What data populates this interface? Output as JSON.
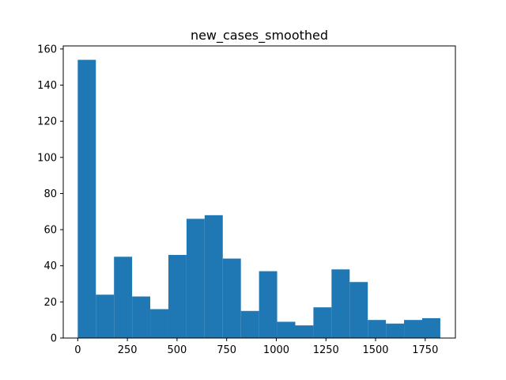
{
  "chart_data": {
    "type": "bar",
    "title": "new_cases_smoothed",
    "xlabel": "",
    "ylabel": "",
    "xlim": [
      -73,
      1902
    ],
    "ylim": [
      0,
      161.7
    ],
    "bar_color": "#1f77b4",
    "grid": false,
    "bins": [
      {
        "x0": 0.0,
        "x1": 91.3,
        "value": 154
      },
      {
        "x0": 91.3,
        "x1": 182.6,
        "value": 24
      },
      {
        "x0": 182.6,
        "x1": 273.9,
        "value": 45
      },
      {
        "x0": 273.9,
        "x1": 365.2,
        "value": 23
      },
      {
        "x0": 365.2,
        "x1": 456.5,
        "value": 16
      },
      {
        "x0": 456.5,
        "x1": 547.8,
        "value": 46
      },
      {
        "x0": 547.8,
        "x1": 639.1,
        "value": 66
      },
      {
        "x0": 639.1,
        "x1": 730.4,
        "value": 68
      },
      {
        "x0": 730.4,
        "x1": 821.7,
        "value": 44
      },
      {
        "x0": 821.7,
        "x1": 913.0,
        "value": 15
      },
      {
        "x0": 913.0,
        "x1": 1004.3,
        "value": 37
      },
      {
        "x0": 1004.3,
        "x1": 1095.6,
        "value": 9
      },
      {
        "x0": 1095.6,
        "x1": 1186.9,
        "value": 7
      },
      {
        "x0": 1186.9,
        "x1": 1278.2,
        "value": 17
      },
      {
        "x0": 1278.2,
        "x1": 1369.5,
        "value": 38
      },
      {
        "x0": 1369.5,
        "x1": 1460.8,
        "value": 31
      },
      {
        "x0": 1460.8,
        "x1": 1552.1,
        "value": 10
      },
      {
        "x0": 1552.1,
        "x1": 1643.4,
        "value": 8
      },
      {
        "x0": 1643.4,
        "x1": 1734.7,
        "value": 10
      },
      {
        "x0": 1734.7,
        "x1": 1826.0,
        "value": 11
      }
    ],
    "xticks": [
      0,
      250,
      500,
      750,
      1000,
      1250,
      1500,
      1750
    ],
    "xtick_labels": [
      "0",
      "250",
      "500",
      "750",
      "1000",
      "1250",
      "1500",
      "1750"
    ],
    "yticks": [
      0,
      20,
      40,
      60,
      80,
      100,
      120,
      140,
      160
    ],
    "ytick_labels": [
      "0",
      "20",
      "40",
      "60",
      "80",
      "100",
      "120",
      "140",
      "160"
    ]
  }
}
